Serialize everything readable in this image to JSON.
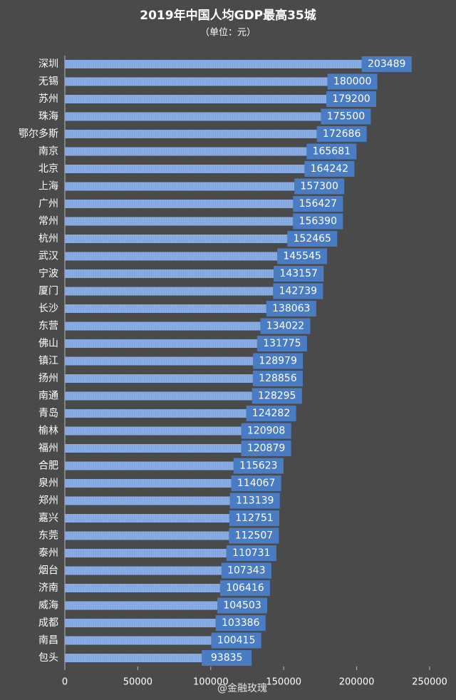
{
  "chart_data": {
    "type": "bar",
    "orientation": "horizontal",
    "title": "2019年中国人均GDP最高35城",
    "subtitle": "（单位：元）",
    "categories": [
      "深圳",
      "无锡",
      "苏州",
      "珠海",
      "鄂尔多斯",
      "南京",
      "北京",
      "上海",
      "广州",
      "常州",
      "杭州",
      "武汉",
      "宁波",
      "厦门",
      "长沙",
      "东营",
      "佛山",
      "镇江",
      "扬州",
      "南通",
      "青岛",
      "榆林",
      "福州",
      "合肥",
      "泉州",
      "郑州",
      "嘉兴",
      "东莞",
      "泰州",
      "烟台",
      "济南",
      "威海",
      "成都",
      "南昌",
      "包头"
    ],
    "values": [
      203489,
      180000,
      179200,
      175500,
      172686,
      165681,
      164242,
      157300,
      156427,
      156390,
      152465,
      145545,
      143157,
      142739,
      138063,
      134022,
      131775,
      128979,
      128856,
      128295,
      124282,
      120908,
      120879,
      115623,
      114067,
      113139,
      112751,
      112507,
      110731,
      107343,
      106416,
      104503,
      103386,
      100415,
      93835
    ],
    "color": "#7fa4de",
    "label_color": "#4a7cc4",
    "xlim": [
      0,
      250000
    ],
    "xticks": [
      0,
      50000,
      100000,
      150000,
      200000,
      250000
    ],
    "watermark": "@金融玫瑰"
  }
}
